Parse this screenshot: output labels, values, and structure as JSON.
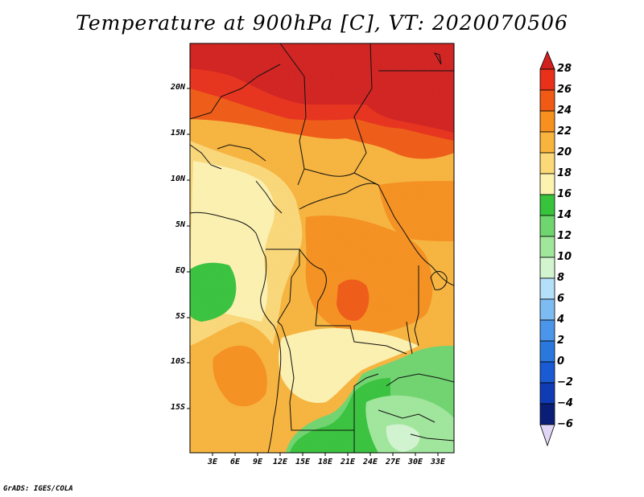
{
  "title": "Temperature at 900hPa [C], VT: 2020070506",
  "credit": "GrADS: IGES/COLA",
  "map": {
    "lat_ticks": [
      "20N",
      "15N",
      "10N",
      "5N",
      "EQ",
      "5S",
      "10S",
      "15S"
    ],
    "lon_ticks": [
      "3E",
      "6E",
      "9E",
      "12E",
      "15E",
      "18E",
      "21E",
      "24E",
      "27E",
      "30E",
      "33E"
    ]
  },
  "colorbar": {
    "labels": [
      "28",
      "26",
      "24",
      "22",
      "20",
      "18",
      "16",
      "14",
      "12",
      "10",
      "8",
      "6",
      "4",
      "2",
      "0",
      "−2",
      "−4",
      "−6"
    ],
    "colors": {
      "gt28": "#d2201e",
      "26_28": "#e8301a",
      "24_26": "#f05a14",
      "22_24": "#f7901e",
      "20_22": "#f8b43c",
      "18_20": "#fbd878",
      "16_18": "#fdf2b0",
      "14_16": "#37c33c",
      "12_14": "#6fd56e",
      "10_12": "#a0e79c",
      "8_10": "#d2f5d0",
      "6_8": "#b4e0fa",
      "4_6": "#7dbcf2",
      "2_4": "#4b96ea",
      "0_2": "#2a78de",
      "m2_0": "#1a5ad2",
      "m4_m2": "#0f3cb4",
      "m6_m4": "#0a1e78",
      "lt_m6": "#e1d6f5"
    }
  }
}
